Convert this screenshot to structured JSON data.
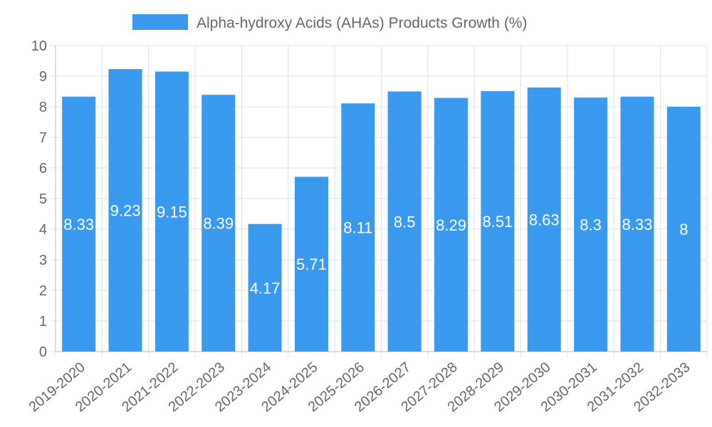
{
  "chart_data": {
    "type": "bar",
    "legend_position": "top-center",
    "legend": [
      "Alpha-hydroxy Acids (AHAs) Products Growth (%)"
    ],
    "categories": [
      "2019-2020",
      "2020-2021",
      "2021-2022",
      "2022-2023",
      "2023-2024",
      "2024-2025",
      "2025-2026",
      "2026-2027",
      "2027-2028",
      "2028-2029",
      "2029-2030",
      "2030-2031",
      "2031-2032",
      "2032-2033"
    ],
    "series": [
      {
        "name": "Alpha-hydroxy Acids (AHAs) Products Growth (%)",
        "values": [
          8.33,
          9.23,
          9.15,
          8.39,
          4.17,
          5.71,
          8.11,
          8.5,
          8.29,
          8.51,
          8.63,
          8.3,
          8.33,
          8
        ],
        "data_labels": [
          "8.33",
          "9.23",
          "9.15",
          "8.39",
          "4.17",
          "5.71",
          "8.11",
          "8.5",
          "8.29",
          "8.51",
          "8.63",
          "8.3",
          "8.33",
          "8"
        ]
      }
    ],
    "y_ticks": [
      "0",
      "1",
      "2",
      "3",
      "4",
      "5",
      "6",
      "7",
      "8",
      "9",
      "10"
    ],
    "ylim": [
      0,
      10
    ],
    "grid": true,
    "xlabel": "",
    "ylabel": "",
    "title": ""
  },
  "colors": {
    "bar": "#3a9af0",
    "grid": "#e0e0e0",
    "axis": "#bbbbbb",
    "text": "#666666",
    "label": "#ffffff"
  }
}
